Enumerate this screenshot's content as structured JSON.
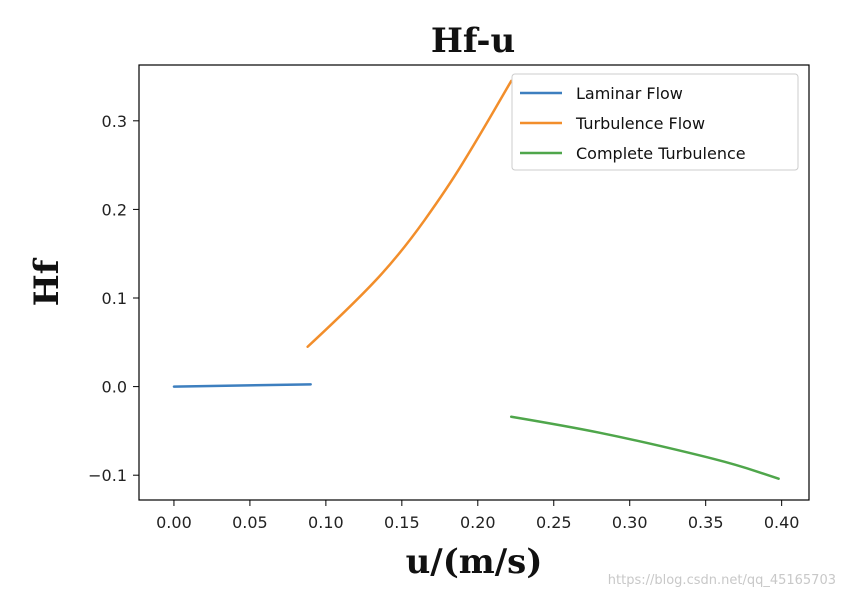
{
  "chart_data": {
    "type": "line",
    "title": "Hf-u",
    "xlabel": "u/(m/s)",
    "ylabel": "Hf",
    "xlim": [
      -0.023,
      0.418
    ],
    "ylim": [
      -0.128,
      0.363
    ],
    "xticks": [
      0.0,
      0.05,
      0.1,
      0.15,
      0.2,
      0.25,
      0.3,
      0.35,
      0.4
    ],
    "xtick_labels": [
      "0.00",
      "0.05",
      "0.10",
      "0.15",
      "0.20",
      "0.25",
      "0.30",
      "0.35",
      "0.40"
    ],
    "yticks": [
      -0.1,
      0.0,
      0.1,
      0.2,
      0.3
    ],
    "ytick_labels": [
      "−0.1",
      "0.0",
      "0.1",
      "0.2",
      "0.3"
    ],
    "grid": false,
    "legend_position": "top-right",
    "series": [
      {
        "name": "Laminar Flow",
        "color": "#3d7fbf",
        "x": [
          0.0,
          0.09
        ],
        "y": [
          0.0,
          0.0025
        ]
      },
      {
        "name": "Turbulence Flow",
        "color": "#f28e2b",
        "x": [
          0.088,
          0.12,
          0.15,
          0.18,
          0.2,
          0.222
        ],
        "y": [
          0.045,
          0.096,
          0.152,
          0.224,
          0.28,
          0.345
        ]
      },
      {
        "name": "Complete Turbulence",
        "color": "#4fa64b",
        "x": [
          0.222,
          0.26,
          0.3,
          0.34,
          0.37,
          0.398
        ],
        "y": [
          -0.034,
          -0.045,
          -0.059,
          -0.075,
          -0.088,
          -0.104
        ]
      }
    ]
  },
  "watermark": "https://blog.csdn.net/qq_45165703"
}
